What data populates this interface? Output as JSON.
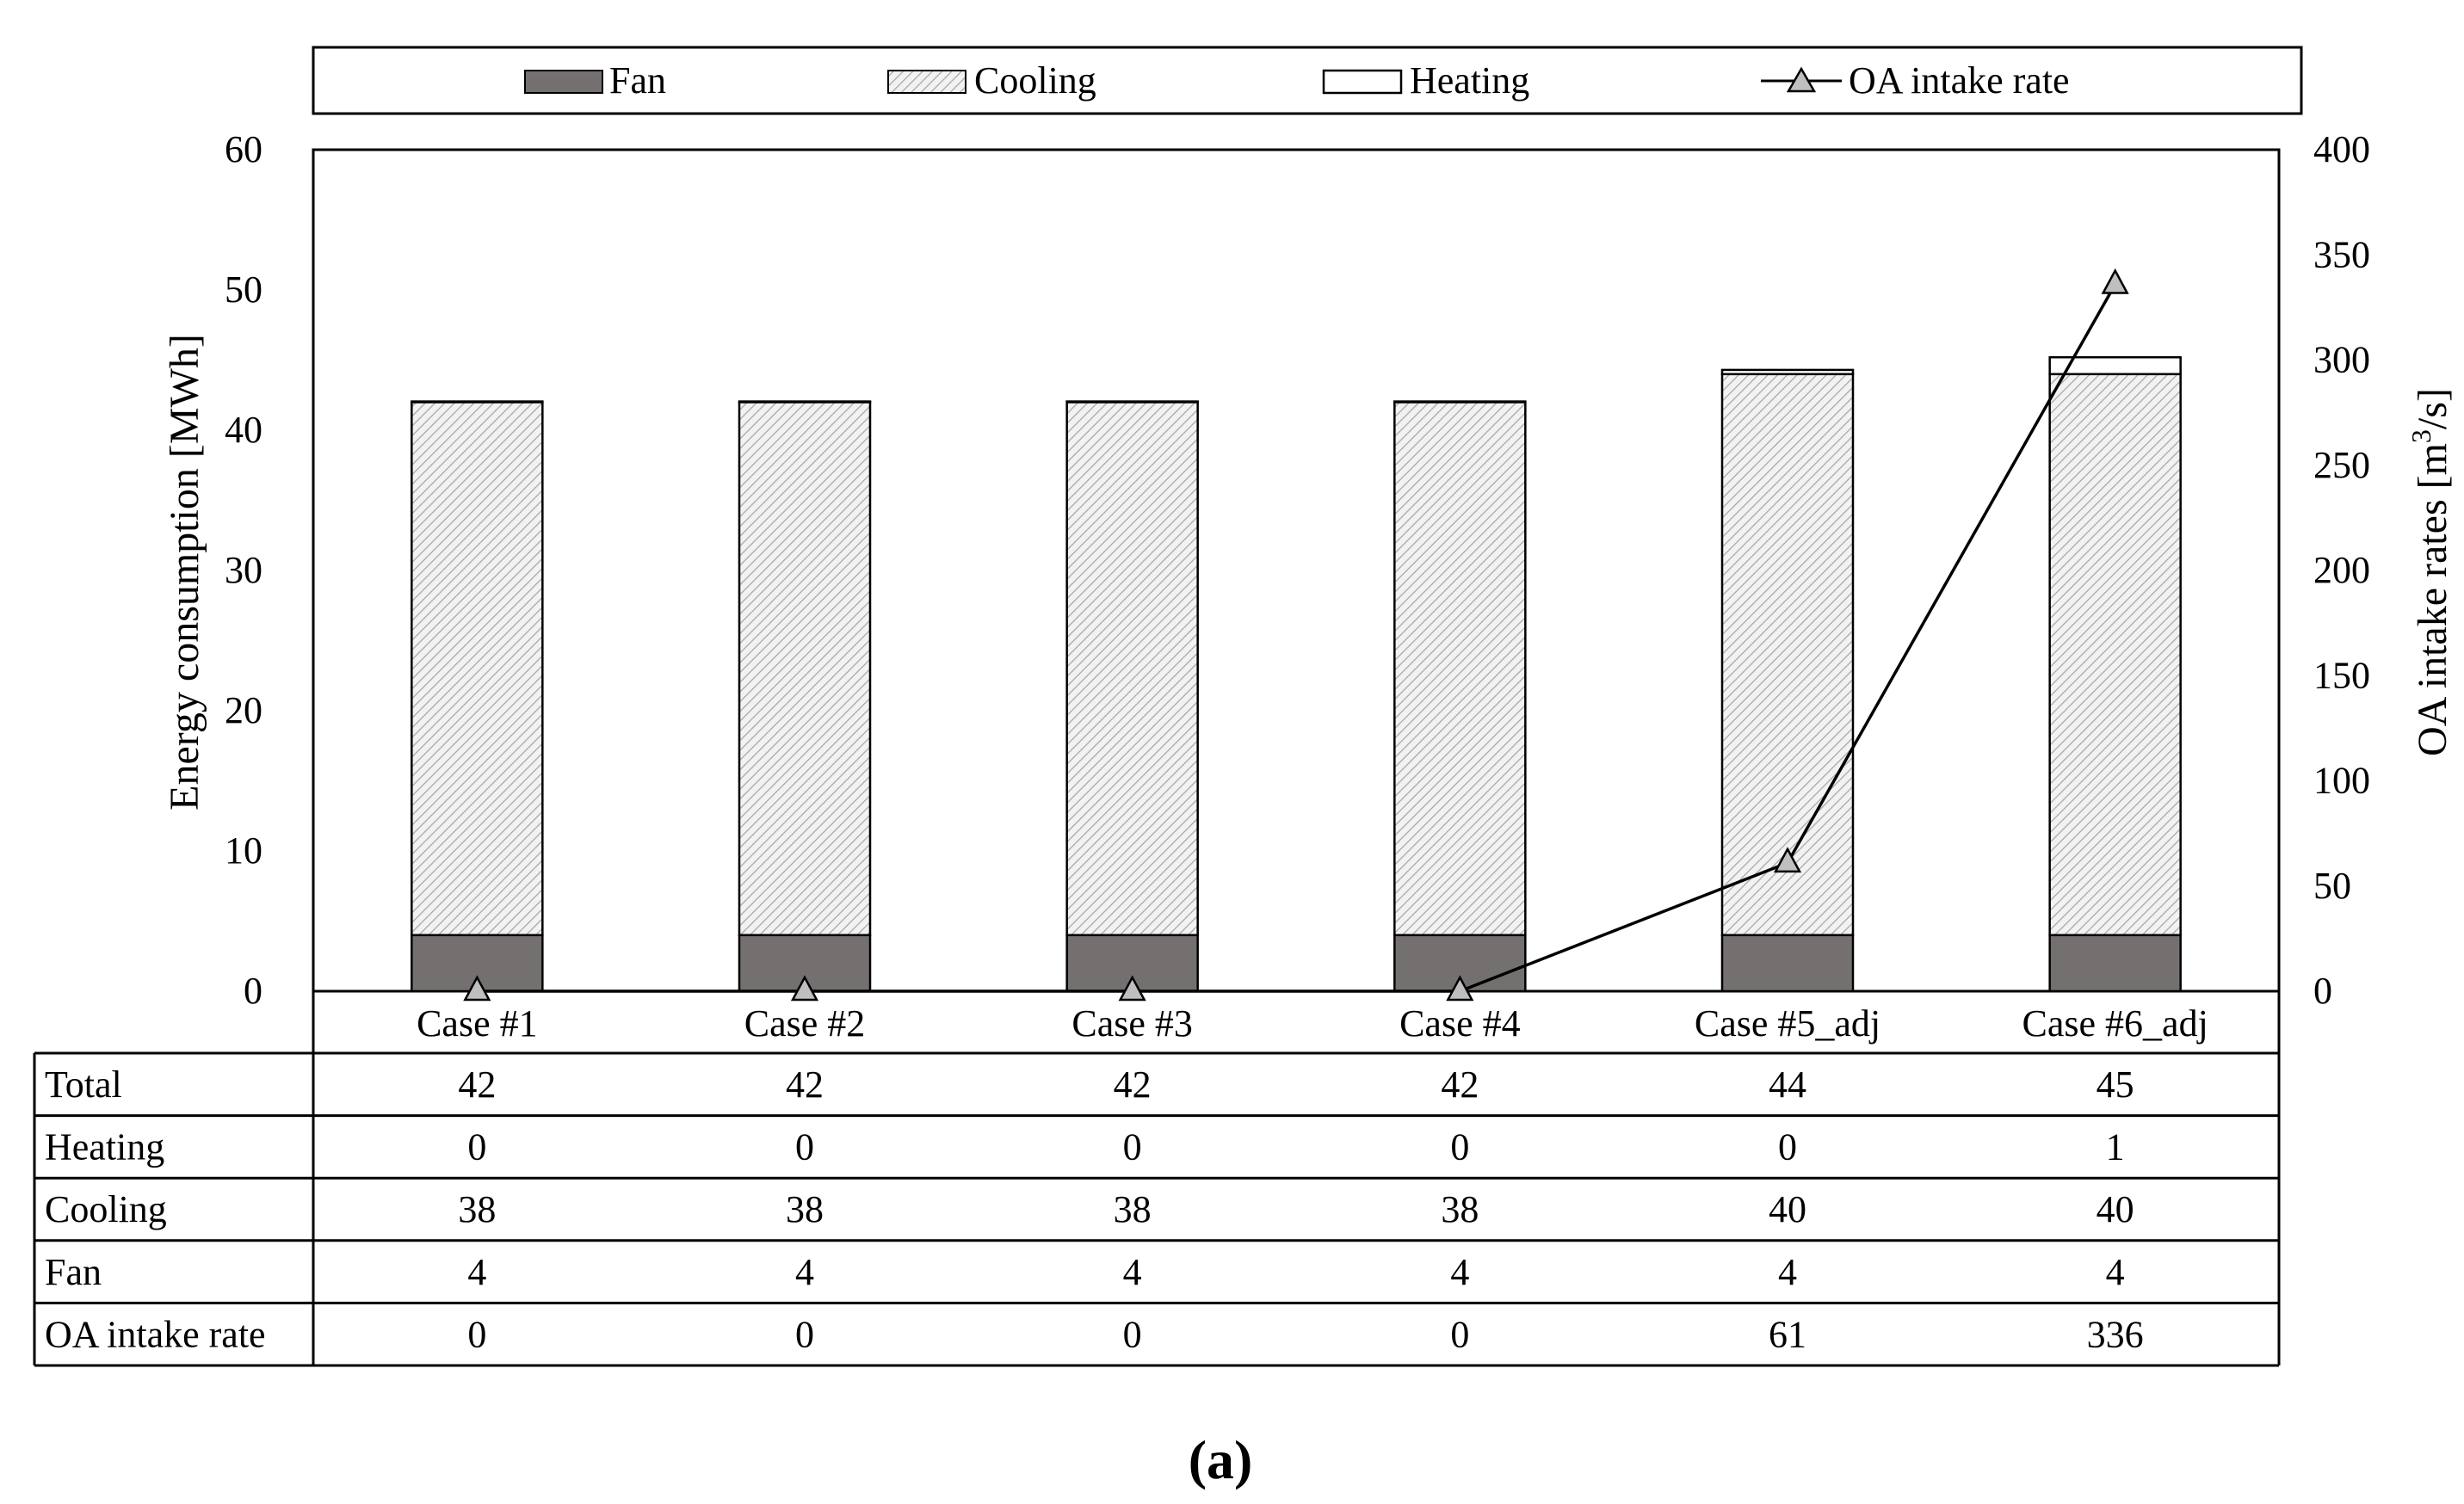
{
  "caption": "(a)",
  "chart_data": {
    "type": "bar",
    "stacked": true,
    "categories": [
      "Case #1",
      "Case #2",
      "Case #3",
      "Case #4",
      "Case #5_adj",
      "Case #6_adj"
    ],
    "series": [
      {
        "name": "Fan",
        "values": [
          4,
          4,
          4,
          4,
          4,
          4
        ],
        "color": "#757070",
        "pattern": "solid"
      },
      {
        "name": "Cooling",
        "values": [
          38,
          38,
          38,
          38,
          40,
          40
        ],
        "color": "#d9d9d9",
        "pattern": "hatch"
      },
      {
        "name": "Heating",
        "values": [
          0.05,
          0.05,
          0.05,
          0.05,
          0.3,
          1.2
        ],
        "color": "#ffffff",
        "pattern": "none"
      }
    ],
    "line_series": {
      "name": "OA intake rate",
      "axis": "right",
      "values": [
        0,
        0,
        0,
        0,
        61,
        336
      ],
      "marker": "triangle",
      "color": "#000000"
    },
    "ylabel": "Energy consumption [MWh]",
    "ylabel_right_prefix": "OA intake rates [m",
    "ylabel_right_sup": "3",
    "ylabel_right_suffix": "/s]",
    "ylim": [
      0,
      60
    ],
    "yticks": [
      "0",
      "10",
      "20",
      "30",
      "40",
      "50",
      "60"
    ],
    "y2lim": [
      0,
      400
    ],
    "y2ticks": [
      "0",
      "50",
      "100",
      "150",
      "200",
      "250",
      "300",
      "350",
      "400"
    ],
    "legend_position": "top",
    "legend": [
      "Fan",
      "Cooling",
      "Heating",
      "OA intake rate"
    ],
    "data_table": {
      "rows": [
        {
          "label": "Total",
          "values": [
            "42",
            "42",
            "42",
            "42",
            "44",
            "45"
          ]
        },
        {
          "label": "Heating",
          "values": [
            "0",
            "0",
            "0",
            "0",
            "0",
            "1"
          ]
        },
        {
          "label": "Cooling",
          "values": [
            "38",
            "38",
            "38",
            "38",
            "40",
            "40"
          ]
        },
        {
          "label": "Fan",
          "values": [
            "4",
            "4",
            "4",
            "4",
            "4",
            "4"
          ]
        },
        {
          "label": "OA intake rate",
          "values": [
            "0",
            "0",
            "0",
            "0",
            "61",
            "336"
          ]
        }
      ]
    }
  }
}
